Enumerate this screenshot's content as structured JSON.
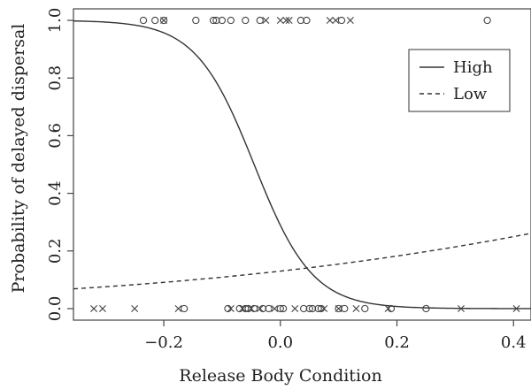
{
  "chart_data": {
    "type": "line",
    "xlabel": "Release Body Condition",
    "ylabel": "Probability of delayed dispersal",
    "xlim": [
      -0.355,
      0.43
    ],
    "ylim": [
      -0.04,
      1.04
    ],
    "x_ticks": [
      -0.2,
      0.0,
      0.2,
      0.4
    ],
    "x_tick_labels": [
      "−0.2",
      "0.0",
      "0.2",
      "0.4"
    ],
    "y_ticks": [
      0.0,
      0.2,
      0.4,
      0.6,
      0.8,
      1.0
    ],
    "y_tick_labels": [
      "0.0",
      "0.2",
      "0.4",
      "0.6",
      "0.8",
      "1.0"
    ],
    "grid": false,
    "legend_position": "top-right",
    "series": [
      {
        "name": "High",
        "style": "solid",
        "model": "logistic",
        "intercept": -0.9,
        "slope": -20.0,
        "x_range": [
          -0.355,
          0.43
        ]
      },
      {
        "name": "Low",
        "style": "dashed",
        "model": "logistic",
        "intercept": -1.9,
        "slope": 2.0,
        "x_range": [
          -0.355,
          0.43
        ]
      }
    ],
    "observations": {
      "circles_top": [
        -0.235,
        -0.215,
        -0.2,
        -0.145,
        -0.115,
        -0.11,
        -0.1,
        -0.085,
        -0.06,
        -0.035,
        0.035,
        0.045,
        0.105,
        0.355
      ],
      "crosses_top": [
        -0.2,
        -0.025,
        0.0,
        0.01,
        0.015,
        0.085,
        0.095,
        0.12
      ],
      "circles_bottom": [
        -0.165,
        -0.09,
        -0.07,
        -0.06,
        -0.055,
        -0.045,
        -0.03,
        -0.02,
        0.0,
        0.005,
        0.04,
        0.05,
        0.055,
        0.065,
        0.07,
        0.1,
        0.11,
        0.145,
        0.19,
        0.25
      ],
      "crosses_bottom": [
        -0.32,
        -0.305,
        -0.25,
        -0.175,
        -0.085,
        -0.065,
        -0.05,
        -0.035,
        -0.01,
        0.025,
        0.075,
        0.1,
        0.13,
        0.185,
        0.31,
        0.405
      ]
    }
  }
}
